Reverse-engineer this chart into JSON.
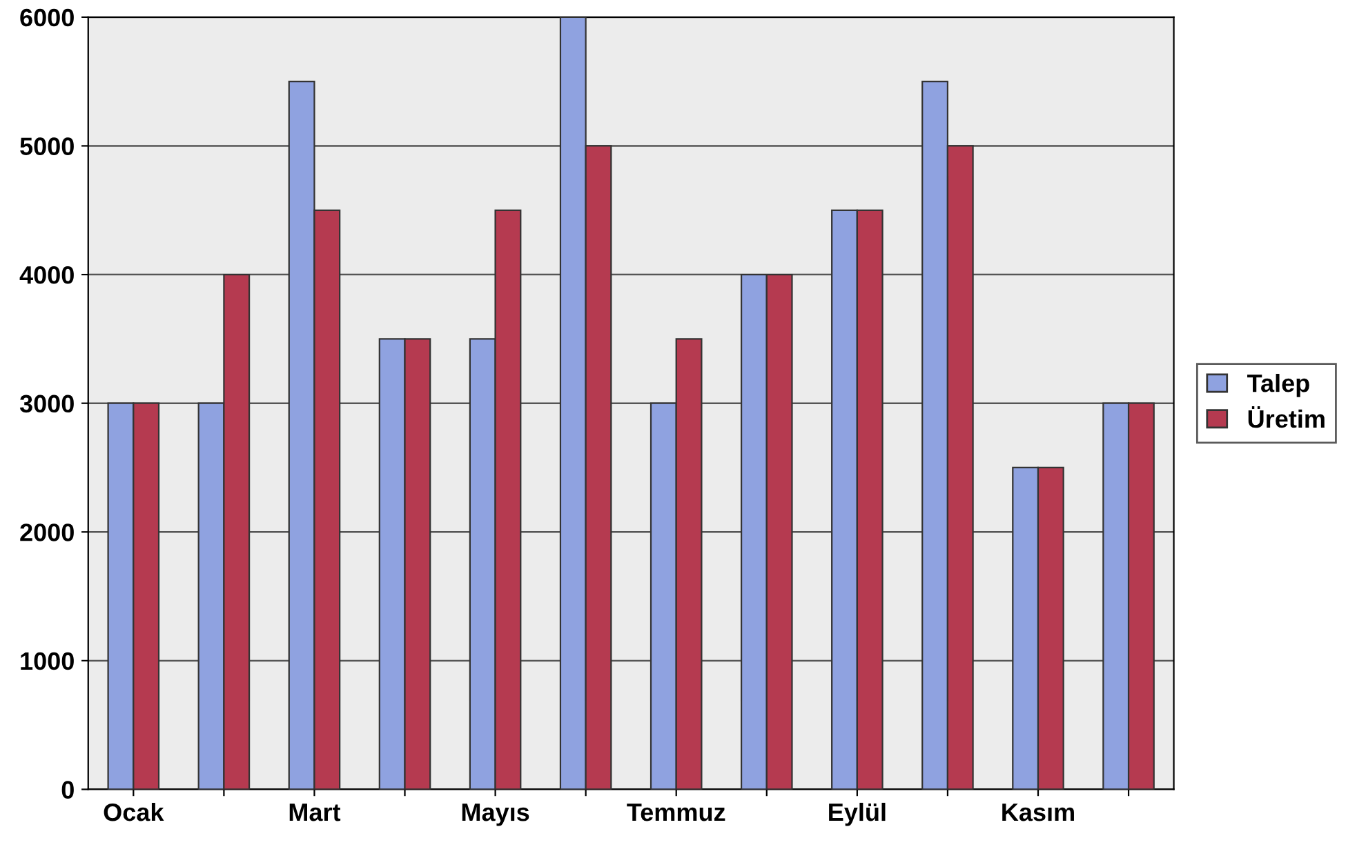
{
  "chart_data": {
    "type": "bar",
    "categories": [
      "Ocak",
      null,
      "Mart",
      null,
      "Mayıs",
      null,
      "Temmuz",
      null,
      "Eylül",
      null,
      "Kasım",
      null
    ],
    "series": [
      {
        "name": "Talep",
        "color": "#8fa2e0",
        "values": [
          3000,
          3000,
          5500,
          3500,
          3500,
          6000,
          3000,
          4000,
          4500,
          5500,
          2500,
          3000
        ]
      },
      {
        "name": "Üretim",
        "color": "#b53a50",
        "values": [
          3000,
          4000,
          4500,
          3500,
          4500,
          5000,
          3500,
          4000,
          4500,
          5000,
          2500,
          3000
        ]
      }
    ],
    "ylim": [
      0,
      6000
    ],
    "yticks": [
      0,
      1000,
      2000,
      3000,
      4000,
      5000,
      6000
    ],
    "grid": "y",
    "legend": "right"
  }
}
